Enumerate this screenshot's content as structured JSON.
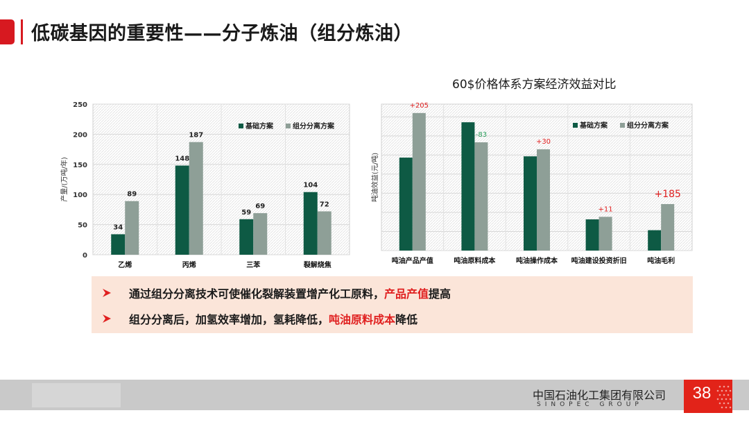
{
  "slide": {
    "title": "低碳基因的重要性——分子炼油（组分炼油）"
  },
  "right_title": "60$价格体系方案经济效益对比",
  "colors": {
    "accent": "#d71920",
    "series_base": "#0e5a44",
    "series_alt": "#8e9f97",
    "highlight_red": "#e02020",
    "callout_bg": "#fbe5d9"
  },
  "chart_data": [
    {
      "type": "bar",
      "categories": [
        "乙烯",
        "丙烯",
        "三苯",
        "裂解烧焦"
      ],
      "series": [
        {
          "name": "基础方案",
          "values": [
            34,
            148,
            59,
            104
          ]
        },
        {
          "name": "组分分离方案",
          "values": [
            89,
            187,
            69,
            72
          ]
        }
      ],
      "ylabel": "产量/(万吨/年)",
      "yticks": [
        0,
        50,
        100,
        150,
        200,
        250
      ],
      "ylim": [
        0,
        250
      ],
      "grid": true,
      "legend": "top-right",
      "data_labels": true
    },
    {
      "type": "bar",
      "categories": [
        "吨油产品产值",
        "吨油原料成本",
        "吨油操作成本",
        "吨油建设投资折旧",
        "吨油毛利"
      ],
      "series": [
        {
          "name": "基础方案",
          "values": [
            1460,
            2015,
            1480,
            490,
            320
          ]
        },
        {
          "name": "组分分离方案",
          "values": [
            2160,
            1700,
            1590,
            530,
            730
          ]
        }
      ],
      "ylabel": "吨油效益(元/吨)",
      "ylim": [
        0,
        2300
      ],
      "grid": true,
      "legend": "top-right",
      "annotations": [
        "+205",
        "-83",
        "+30",
        "+11",
        "+185"
      ]
    }
  ],
  "bullets": [
    {
      "before": "通过组分分离技术可使催化裂解装置增产化工原料，",
      "highlight": "产品产值",
      "after": "提高"
    },
    {
      "before": "组分分离后，加氢效率增加，氢耗降低，",
      "highlight": "吨油原料成本",
      "after": "降低"
    }
  ],
  "footer": {
    "company": "中国石油化工集团有限公司",
    "group": "SINOPEC GROUP",
    "page_number": "38"
  }
}
